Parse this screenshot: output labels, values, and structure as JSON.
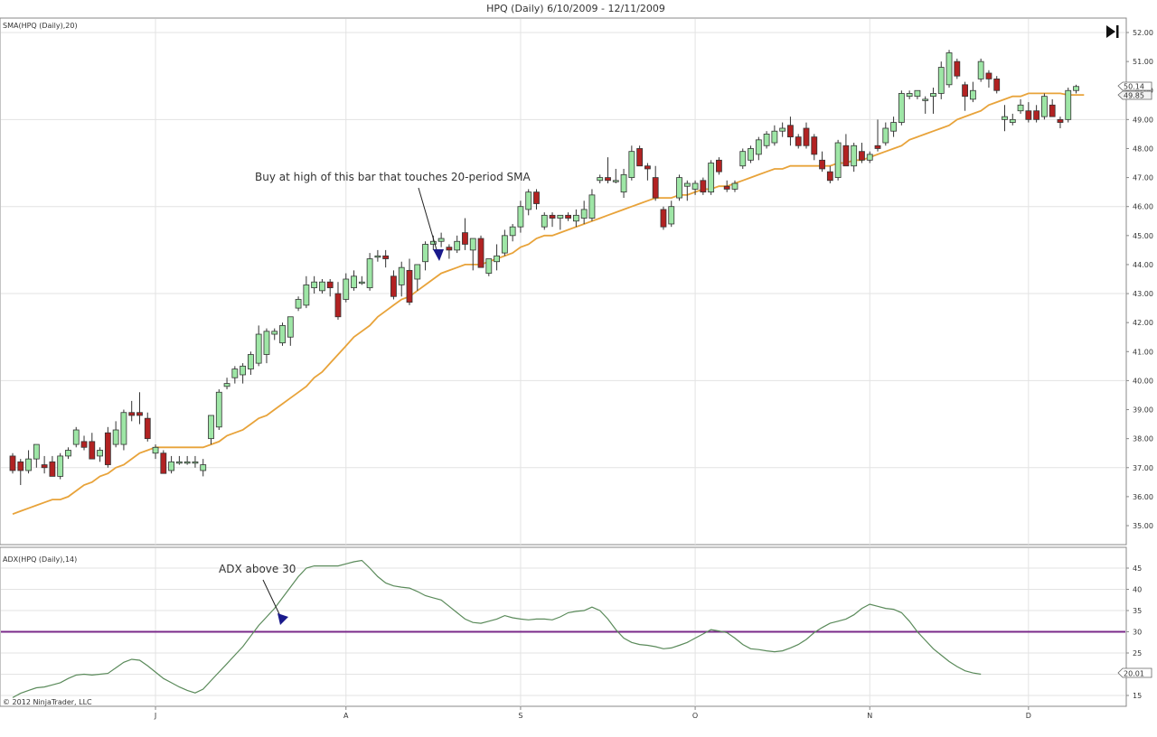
{
  "chart_data": [
    {
      "type": "candlestick",
      "title": "HPQ (Daily)  6/10/2009 - 12/11/2009",
      "indicator_label": "SMA(HPQ (Daily),20)",
      "ylim": [
        34.5,
        52.5
      ],
      "y_ticks": [
        "52.00",
        "51.00",
        "50.00",
        "49.00",
        "48.00",
        "47.00",
        "46.00",
        "45.00",
        "44.00",
        "43.00",
        "42.00",
        "41.00",
        "40.00",
        "39.00",
        "38.00",
        "37.00",
        "36.00",
        "35.00"
      ],
      "last_price_label": "50.14",
      "last_sma_label": "49.85",
      "colors": {
        "up": "#9ee6a6",
        "down": "#b22222",
        "sma": "#e8a33a",
        "grid": "#e3e3e3",
        "annotation_arrow": "#1a1a8c"
      },
      "candles": [
        {
          "o": 37.4,
          "h": 37.5,
          "l": 36.8,
          "c": 36.9
        },
        {
          "o": 37.2,
          "h": 37.3,
          "l": 36.4,
          "c": 36.9
        },
        {
          "o": 36.9,
          "h": 37.6,
          "l": 36.8,
          "c": 37.3
        },
        {
          "o": 37.3,
          "h": 37.8,
          "l": 37.0,
          "c": 37.8
        },
        {
          "o": 37.1,
          "h": 37.4,
          "l": 36.8,
          "c": 37.0
        },
        {
          "o": 37.2,
          "h": 37.4,
          "l": 36.7,
          "c": 36.7
        },
        {
          "o": 36.7,
          "h": 37.5,
          "l": 36.6,
          "c": 37.4
        },
        {
          "o": 37.4,
          "h": 37.7,
          "l": 37.3,
          "c": 37.6
        },
        {
          "o": 37.8,
          "h": 38.4,
          "l": 37.7,
          "c": 38.3
        },
        {
          "o": 37.9,
          "h": 38.1,
          "l": 37.6,
          "c": 37.7
        },
        {
          "o": 37.9,
          "h": 38.2,
          "l": 37.3,
          "c": 37.3
        },
        {
          "o": 37.4,
          "h": 37.7,
          "l": 37.2,
          "c": 37.6
        },
        {
          "o": 38.2,
          "h": 38.4,
          "l": 37.0,
          "c": 37.1
        },
        {
          "o": 37.8,
          "h": 38.6,
          "l": 37.7,
          "c": 38.3
        },
        {
          "o": 37.8,
          "h": 39.0,
          "l": 37.6,
          "c": 38.9
        },
        {
          "o": 38.9,
          "h": 39.3,
          "l": 38.6,
          "c": 38.8
        },
        {
          "o": 38.9,
          "h": 39.6,
          "l": 38.5,
          "c": 38.8
        },
        {
          "o": 38.7,
          "h": 38.9,
          "l": 37.9,
          "c": 38.0
        },
        {
          "o": 37.5,
          "h": 37.8,
          "l": 37.3,
          "c": 37.7
        },
        {
          "o": 37.5,
          "h": 37.6,
          "l": 36.8,
          "c": 36.8
        },
        {
          "o": 36.9,
          "h": 37.4,
          "l": 36.8,
          "c": 37.2
        },
        {
          "o": 37.2,
          "h": 37.4,
          "l": 37.1,
          "c": 37.2
        },
        {
          "o": 37.2,
          "h": 37.4,
          "l": 37.1,
          "c": 37.2
        },
        {
          "o": 37.2,
          "h": 37.4,
          "l": 37.0,
          "c": 37.2
        },
        {
          "o": 36.9,
          "h": 37.3,
          "l": 36.7,
          "c": 37.1
        },
        {
          "o": 38.0,
          "h": 38.8,
          "l": 37.8,
          "c": 38.8
        },
        {
          "o": 38.4,
          "h": 39.7,
          "l": 38.3,
          "c": 39.6
        },
        {
          "o": 39.8,
          "h": 40.1,
          "l": 39.7,
          "c": 39.9
        },
        {
          "o": 40.1,
          "h": 40.5,
          "l": 39.9,
          "c": 40.4
        },
        {
          "o": 40.2,
          "h": 40.6,
          "l": 39.9,
          "c": 40.5
        },
        {
          "o": 40.4,
          "h": 41.0,
          "l": 40.2,
          "c": 40.9
        },
        {
          "o": 40.6,
          "h": 41.9,
          "l": 40.5,
          "c": 41.6
        },
        {
          "o": 40.9,
          "h": 41.8,
          "l": 40.6,
          "c": 41.7
        },
        {
          "o": 41.6,
          "h": 41.8,
          "l": 41.4,
          "c": 41.7
        },
        {
          "o": 41.3,
          "h": 42.0,
          "l": 41.2,
          "c": 41.9
        },
        {
          "o": 41.5,
          "h": 42.2,
          "l": 41.2,
          "c": 42.2
        },
        {
          "o": 42.5,
          "h": 42.9,
          "l": 42.4,
          "c": 42.8
        },
        {
          "o": 42.6,
          "h": 43.6,
          "l": 42.5,
          "c": 43.3
        },
        {
          "o": 43.2,
          "h": 43.6,
          "l": 43.0,
          "c": 43.4
        },
        {
          "o": 43.1,
          "h": 43.5,
          "l": 43.0,
          "c": 43.4
        },
        {
          "o": 43.4,
          "h": 43.5,
          "l": 42.9,
          "c": 43.2
        },
        {
          "o": 43.0,
          "h": 43.4,
          "l": 42.1,
          "c": 42.2
        },
        {
          "o": 42.8,
          "h": 43.7,
          "l": 42.7,
          "c": 43.5
        },
        {
          "o": 43.2,
          "h": 43.8,
          "l": 43.1,
          "c": 43.6
        },
        {
          "o": 43.4,
          "h": 43.6,
          "l": 43.3,
          "c": 43.4
        },
        {
          "o": 43.2,
          "h": 44.4,
          "l": 43.1,
          "c": 44.2
        },
        {
          "o": 44.3,
          "h": 44.5,
          "l": 44.1,
          "c": 44.3
        },
        {
          "o": 44.3,
          "h": 44.5,
          "l": 43.9,
          "c": 44.2
        },
        {
          "o": 43.6,
          "h": 43.8,
          "l": 42.8,
          "c": 42.9
        },
        {
          "o": 43.3,
          "h": 44.1,
          "l": 42.9,
          "c": 43.9
        },
        {
          "o": 43.8,
          "h": 44.2,
          "l": 42.6,
          "c": 42.7
        },
        {
          "o": 43.5,
          "h": 44.0,
          "l": 43.1,
          "c": 44.0
        },
        {
          "o": 44.1,
          "h": 44.8,
          "l": 43.8,
          "c": 44.7
        },
        {
          "o": 44.7,
          "h": 45.0,
          "l": 44.5,
          "c": 44.8
        },
        {
          "o": 44.8,
          "h": 45.1,
          "l": 44.6,
          "c": 44.9
        },
        {
          "o": 44.6,
          "h": 44.7,
          "l": 44.2,
          "c": 44.5
        },
        {
          "o": 44.5,
          "h": 45.0,
          "l": 44.4,
          "c": 44.8
        },
        {
          "o": 45.1,
          "h": 45.6,
          "l": 44.5,
          "c": 44.7
        },
        {
          "o": 44.5,
          "h": 44.9,
          "l": 43.8,
          "c": 44.9
        },
        {
          "o": 44.9,
          "h": 45.0,
          "l": 43.9,
          "c": 43.9
        },
        {
          "o": 43.7,
          "h": 44.2,
          "l": 43.6,
          "c": 44.2
        },
        {
          "o": 44.1,
          "h": 44.7,
          "l": 43.8,
          "c": 44.3
        },
        {
          "o": 44.4,
          "h": 45.2,
          "l": 44.3,
          "c": 45.0
        },
        {
          "o": 45.0,
          "h": 45.4,
          "l": 44.8,
          "c": 45.3
        },
        {
          "o": 45.3,
          "h": 46.2,
          "l": 45.1,
          "c": 46.0
        },
        {
          "o": 45.9,
          "h": 46.6,
          "l": 45.7,
          "c": 46.5
        },
        {
          "o": 46.5,
          "h": 46.6,
          "l": 45.9,
          "c": 46.1
        },
        {
          "o": 45.3,
          "h": 45.8,
          "l": 45.2,
          "c": 45.7
        },
        {
          "o": 45.7,
          "h": 45.8,
          "l": 45.3,
          "c": 45.6
        },
        {
          "o": 45.6,
          "h": 45.7,
          "l": 45.2,
          "c": 45.7
        },
        {
          "o": 45.7,
          "h": 45.8,
          "l": 45.5,
          "c": 45.6
        },
        {
          "o": 45.5,
          "h": 45.9,
          "l": 45.3,
          "c": 45.7
        },
        {
          "o": 45.6,
          "h": 46.2,
          "l": 45.4,
          "c": 45.9
        },
        {
          "o": 45.6,
          "h": 46.6,
          "l": 45.5,
          "c": 46.4
        },
        {
          "o": 46.9,
          "h": 47.1,
          "l": 46.8,
          "c": 47.0
        },
        {
          "o": 47.0,
          "h": 47.7,
          "l": 46.8,
          "c": 46.9
        },
        {
          "o": 46.9,
          "h": 47.3,
          "l": 46.8,
          "c": 46.9
        },
        {
          "o": 46.5,
          "h": 47.3,
          "l": 46.3,
          "c": 47.1
        },
        {
          "o": 47.0,
          "h": 48.1,
          "l": 46.9,
          "c": 47.9
        },
        {
          "o": 48.0,
          "h": 48.1,
          "l": 47.4,
          "c": 47.4
        },
        {
          "o": 47.4,
          "h": 47.5,
          "l": 46.9,
          "c": 47.3
        },
        {
          "o": 47.0,
          "h": 47.4,
          "l": 46.2,
          "c": 46.3
        },
        {
          "o": 45.9,
          "h": 46.0,
          "l": 45.2,
          "c": 45.3
        },
        {
          "o": 45.4,
          "h": 46.2,
          "l": 45.3,
          "c": 46.0
        },
        {
          "o": 46.3,
          "h": 47.1,
          "l": 46.2,
          "c": 47.0
        },
        {
          "o": 46.7,
          "h": 46.9,
          "l": 46.2,
          "c": 46.8
        },
        {
          "o": 46.6,
          "h": 46.9,
          "l": 46.4,
          "c": 46.8
        },
        {
          "o": 46.9,
          "h": 47.0,
          "l": 46.4,
          "c": 46.5
        },
        {
          "o": 46.5,
          "h": 47.6,
          "l": 46.4,
          "c": 47.5
        },
        {
          "o": 47.6,
          "h": 47.7,
          "l": 47.1,
          "c": 47.2
        },
        {
          "o": 46.7,
          "h": 46.9,
          "l": 46.5,
          "c": 46.6
        },
        {
          "o": 46.6,
          "h": 46.9,
          "l": 46.5,
          "c": 46.8
        },
        {
          "o": 47.4,
          "h": 48.0,
          "l": 47.3,
          "c": 47.9
        },
        {
          "o": 47.6,
          "h": 48.1,
          "l": 47.5,
          "c": 48.0
        },
        {
          "o": 47.8,
          "h": 48.4,
          "l": 47.6,
          "c": 48.3
        },
        {
          "o": 48.1,
          "h": 48.6,
          "l": 48.0,
          "c": 48.5
        },
        {
          "o": 48.2,
          "h": 48.8,
          "l": 48.1,
          "c": 48.6
        },
        {
          "o": 48.6,
          "h": 48.9,
          "l": 48.4,
          "c": 48.7
        },
        {
          "o": 48.8,
          "h": 49.1,
          "l": 48.1,
          "c": 48.4
        },
        {
          "o": 48.4,
          "h": 48.5,
          "l": 48.0,
          "c": 48.1
        },
        {
          "o": 48.7,
          "h": 48.9,
          "l": 48.0,
          "c": 48.1
        },
        {
          "o": 48.4,
          "h": 48.5,
          "l": 47.6,
          "c": 47.8
        },
        {
          "o": 47.6,
          "h": 47.9,
          "l": 47.2,
          "c": 47.3
        },
        {
          "o": 47.2,
          "h": 47.4,
          "l": 46.8,
          "c": 46.9
        },
        {
          "o": 47.0,
          "h": 48.3,
          "l": 46.9,
          "c": 48.2
        },
        {
          "o": 48.1,
          "h": 48.5,
          "l": 47.5,
          "c": 47.4
        },
        {
          "o": 47.4,
          "h": 48.2,
          "l": 47.2,
          "c": 48.1
        },
        {
          "o": 47.9,
          "h": 48.2,
          "l": 47.5,
          "c": 47.6
        },
        {
          "o": 47.6,
          "h": 47.9,
          "l": 47.5,
          "c": 47.8
        },
        {
          "o": 48.1,
          "h": 49.0,
          "l": 47.9,
          "c": 48.0
        },
        {
          "o": 48.2,
          "h": 48.9,
          "l": 48.1,
          "c": 48.7
        },
        {
          "o": 48.6,
          "h": 49.1,
          "l": 48.4,
          "c": 48.9
        },
        {
          "o": 48.9,
          "h": 50.0,
          "l": 48.8,
          "c": 49.9
        },
        {
          "o": 49.8,
          "h": 50.0,
          "l": 49.7,
          "c": 49.9
        },
        {
          "o": 49.8,
          "h": 50.0,
          "l": 49.7,
          "c": 50.0
        },
        {
          "o": 49.7,
          "h": 49.8,
          "l": 49.2,
          "c": 49.7
        },
        {
          "o": 49.8,
          "h": 50.1,
          "l": 49.2,
          "c": 49.9
        },
        {
          "o": 49.9,
          "h": 51.0,
          "l": 49.7,
          "c": 50.8
        },
        {
          "o": 50.2,
          "h": 51.4,
          "l": 50.1,
          "c": 51.3
        },
        {
          "o": 51.0,
          "h": 51.1,
          "l": 50.4,
          "c": 50.5
        },
        {
          "o": 50.2,
          "h": 50.3,
          "l": 49.3,
          "c": 49.8
        },
        {
          "o": 49.7,
          "h": 50.3,
          "l": 49.6,
          "c": 50.0
        },
        {
          "o": 50.4,
          "h": 51.1,
          "l": 50.3,
          "c": 51.0
        },
        {
          "o": 50.6,
          "h": 50.7,
          "l": 50.1,
          "c": 50.4
        },
        {
          "o": 50.4,
          "h": 50.5,
          "l": 49.9,
          "c": 50.0
        },
        {
          "o": 49.0,
          "h": 49.5,
          "l": 48.6,
          "c": 49.1
        },
        {
          "o": 48.9,
          "h": 49.2,
          "l": 48.8,
          "c": 49.0
        },
        {
          "o": 49.3,
          "h": 49.7,
          "l": 49.2,
          "c": 49.5
        },
        {
          "o": 49.3,
          "h": 49.6,
          "l": 48.9,
          "c": 49.0
        },
        {
          "o": 49.3,
          "h": 49.5,
          "l": 48.9,
          "c": 49.0
        },
        {
          "o": 49.1,
          "h": 49.9,
          "l": 49.0,
          "c": 49.8
        },
        {
          "o": 49.5,
          "h": 49.7,
          "l": 49.1,
          "c": 49.1
        },
        {
          "o": 49.0,
          "h": 49.1,
          "l": 48.7,
          "c": 48.9
        },
        {
          "o": 49.0,
          "h": 50.1,
          "l": 48.9,
          "c": 50.0
        },
        {
          "o": 50.0,
          "h": 50.2,
          "l": 49.9,
          "c": 50.14
        }
      ],
      "sma": [
        35.4,
        35.5,
        35.6,
        35.7,
        35.8,
        35.9,
        35.9,
        36.0,
        36.2,
        36.4,
        36.5,
        36.7,
        36.8,
        37.0,
        37.1,
        37.3,
        37.5,
        37.6,
        37.7,
        37.7,
        37.7,
        37.7,
        37.7,
        37.7,
        37.7,
        37.8,
        37.9,
        38.1,
        38.2,
        38.3,
        38.5,
        38.7,
        38.8,
        39.0,
        39.2,
        39.4,
        39.6,
        39.8,
        40.1,
        40.3,
        40.6,
        40.9,
        41.2,
        41.5,
        41.7,
        41.9,
        42.2,
        42.4,
        42.6,
        42.8,
        42.9,
        43.1,
        43.3,
        43.5,
        43.7,
        43.8,
        43.9,
        44.0,
        44.0,
        44.0,
        44.1,
        44.2,
        44.3,
        44.4,
        44.6,
        44.7,
        44.9,
        45.0,
        45.0,
        45.1,
        45.2,
        45.3,
        45.4,
        45.5,
        45.6,
        45.7,
        45.8,
        45.9,
        46.0,
        46.1,
        46.2,
        46.3,
        46.3,
        46.3,
        46.4,
        46.4,
        46.5,
        46.6,
        46.6,
        46.7,
        46.7,
        46.8,
        46.9,
        47.0,
        47.1,
        47.2,
        47.3,
        47.3,
        47.4,
        47.4,
        47.4,
        47.4,
        47.4,
        47.4,
        47.5,
        47.5,
        47.6,
        47.6,
        47.7,
        47.8,
        47.9,
        48.0,
        48.1,
        48.3,
        48.4,
        48.5,
        48.6,
        48.7,
        48.8,
        49.0,
        49.1,
        49.2,
        49.3,
        49.5,
        49.6,
        49.7,
        49.8,
        49.8,
        49.9,
        49.9,
        49.9,
        49.9,
        49.9,
        49.85,
        49.85,
        49.85
      ],
      "annotation": "Buy at high of this bar that touches 20-period SMA"
    },
    {
      "type": "line",
      "indicator_label": "ADX(HPQ (Daily),14)",
      "ylim": [
        13,
        48
      ],
      "y_ticks": [
        "45",
        "40",
        "35",
        "30",
        "25",
        "20",
        "15"
      ],
      "threshold": 30,
      "last_value_label": "20.01",
      "colors": {
        "line": "#5a8a5a",
        "threshold": "#7a2a8a"
      },
      "values": [
        14.5,
        15.5,
        16.2,
        16.8,
        17.0,
        17.5,
        18.0,
        19.0,
        19.8,
        20.0,
        19.8,
        20.0,
        20.2,
        21.5,
        22.8,
        23.5,
        23.3,
        22.0,
        20.5,
        19.0,
        18.0,
        17.0,
        16.2,
        15.6,
        16.5,
        18.5,
        20.5,
        22.5,
        24.5,
        26.5,
        29.0,
        31.5,
        33.5,
        35.5,
        38.0,
        40.5,
        43.0,
        45.0,
        45.5,
        45.5,
        45.5,
        45.5,
        46.0,
        46.5,
        46.8,
        45.0,
        43.0,
        41.5,
        40.8,
        40.5,
        40.3,
        39.5,
        38.5,
        38.0,
        37.5,
        36.0,
        34.5,
        33.0,
        32.2,
        32.0,
        32.5,
        33.0,
        33.8,
        33.3,
        33.0,
        32.8,
        33.0,
        33.0,
        32.8,
        33.5,
        34.5,
        34.8,
        35.0,
        35.8,
        35.0,
        33.0,
        30.5,
        28.5,
        27.5,
        27.0,
        26.8,
        26.5,
        26.0,
        26.2,
        26.8,
        27.5,
        28.5,
        29.5,
        30.5,
        30.2,
        29.8,
        28.5,
        27.0,
        26.0,
        25.8,
        25.5,
        25.3,
        25.5,
        26.2,
        27.0,
        28.2,
        29.8,
        31.0,
        32.0,
        32.5,
        33.0,
        34.0,
        35.5,
        36.5,
        36.0,
        35.5,
        35.3,
        34.5,
        32.5,
        30.0,
        28.0,
        26.0,
        24.5,
        23.0,
        21.8,
        20.8,
        20.3,
        20.01
      ]
    }
  ],
  "title": "HPQ (Daily)  6/10/2009 - 12/11/2009",
  "annotations": {
    "buy": "Buy at high of this bar that touches 20-period SMA",
    "adx": "ADX above 30"
  },
  "x_axis": {
    "labels": [
      {
        "label": "J",
        "index": 18
      },
      {
        "label": "A",
        "index": 42
      },
      {
        "label": "S",
        "index": 64
      },
      {
        "label": "O",
        "index": 86
      },
      {
        "label": "N",
        "index": 108
      },
      {
        "label": "D",
        "index": 128
      }
    ]
  },
  "copyright": "© 2012 NinjaTrader, LLC",
  "icons": {
    "play_to_end": "skip-to-end-icon"
  }
}
